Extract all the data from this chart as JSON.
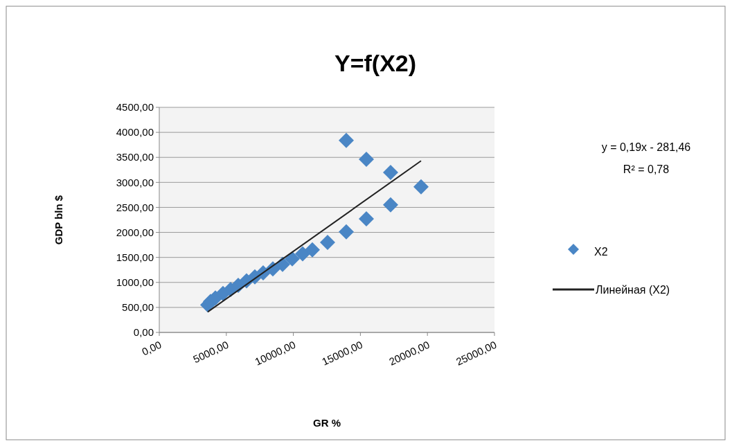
{
  "chart_data": {
    "type": "scatter",
    "title": "Y=f(X2)",
    "xlabel": "GR %",
    "ylabel": "GDP bln $",
    "xlim": [
      0,
      25000
    ],
    "xticks": [
      {
        "value": 0,
        "label": "0,00"
      },
      {
        "value": 5000,
        "label": "5000,00"
      },
      {
        "value": 10000,
        "label": "10000,00"
      },
      {
        "value": 15000,
        "label": "15000,00"
      },
      {
        "value": 20000,
        "label": "20000,00"
      },
      {
        "value": 25000,
        "label": "25000,00"
      }
    ],
    "ylim": [
      0,
      4500
    ],
    "yticks": [
      {
        "value": 0,
        "label": "0,00"
      },
      {
        "value": 500,
        "label": "500,00"
      },
      {
        "value": 1000,
        "label": "1000,00"
      },
      {
        "value": 1500,
        "label": "1500,00"
      },
      {
        "value": 2000,
        "label": "2000,00"
      },
      {
        "value": 2500,
        "label": "2500,00"
      },
      {
        "value": 3000,
        "label": "3000,00"
      },
      {
        "value": 3500,
        "label": "3500,00"
      },
      {
        "value": 4000,
        "label": "4000,00"
      },
      {
        "value": 4500,
        "label": "4500,00"
      }
    ],
    "grid": "y",
    "legend": "right",
    "annotations": [
      "y = 0,19x - 281,46",
      "R² = 0,78"
    ],
    "series": [
      {
        "name": "X2",
        "color": "#4a86c5",
        "marker": "diamond",
        "x": [
          3616,
          3822,
          4184,
          4752,
          5320,
          5888,
          6508,
          7128,
          7748,
          8471,
          9194,
          9917,
          10692,
          11415,
          12552,
          13946,
          15444,
          17252,
          19525,
          17252,
          15444,
          13946
        ],
        "values": [
          550,
          620,
          690,
          780,
          860,
          940,
          1030,
          1110,
          1190,
          1270,
          1360,
          1470,
          1570,
          1650,
          1800,
          2010,
          2270,
          2550,
          2910,
          3200,
          3460,
          3840
        ]
      },
      {
        "name": "Линейная (X2)",
        "type": "line",
        "color": "#222222",
        "marker": "none",
        "line_style": "solid",
        "x": [
          3616,
          19525
        ],
        "values": [
          410,
          3430
        ]
      }
    ]
  }
}
